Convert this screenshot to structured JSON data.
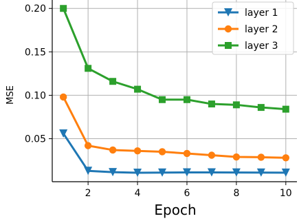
{
  "chart_data": {
    "type": "line",
    "title": "",
    "xlabel": "Epoch",
    "ylabel": "MSE",
    "x": [
      1,
      2,
      3,
      4,
      5,
      6,
      7,
      8,
      9,
      10
    ],
    "xlim": [
      0.55,
      10.45
    ],
    "ylim": [
      0.0005,
      0.2097
    ],
    "xticks": [
      2,
      4,
      6,
      8,
      10
    ],
    "yticks": [
      0.05,
      0.1,
      0.15,
      0.2
    ],
    "ytick_labels": [
      "0.05",
      "0.10",
      "0.15",
      "0.20"
    ],
    "grid": true,
    "legend_position": "top-right",
    "series": [
      {
        "name": "layer 1",
        "color": "#1f77b4",
        "marker": "triangle-down",
        "values": [
          0.056,
          0.013,
          0.0115,
          0.0108,
          0.011,
          0.0112,
          0.0112,
          0.0111,
          0.011,
          0.0109
        ]
      },
      {
        "name": "layer 2",
        "color": "#ff7f0e",
        "marker": "circle",
        "values": [
          0.098,
          0.042,
          0.037,
          0.036,
          0.035,
          0.033,
          0.031,
          0.029,
          0.0287,
          0.028
        ]
      },
      {
        "name": "layer 3",
        "color": "#2ca02c",
        "marker": "square",
        "values": [
          0.2,
          0.131,
          0.116,
          0.107,
          0.095,
          0.095,
          0.09,
          0.089,
          0.086,
          0.084
        ]
      }
    ]
  }
}
